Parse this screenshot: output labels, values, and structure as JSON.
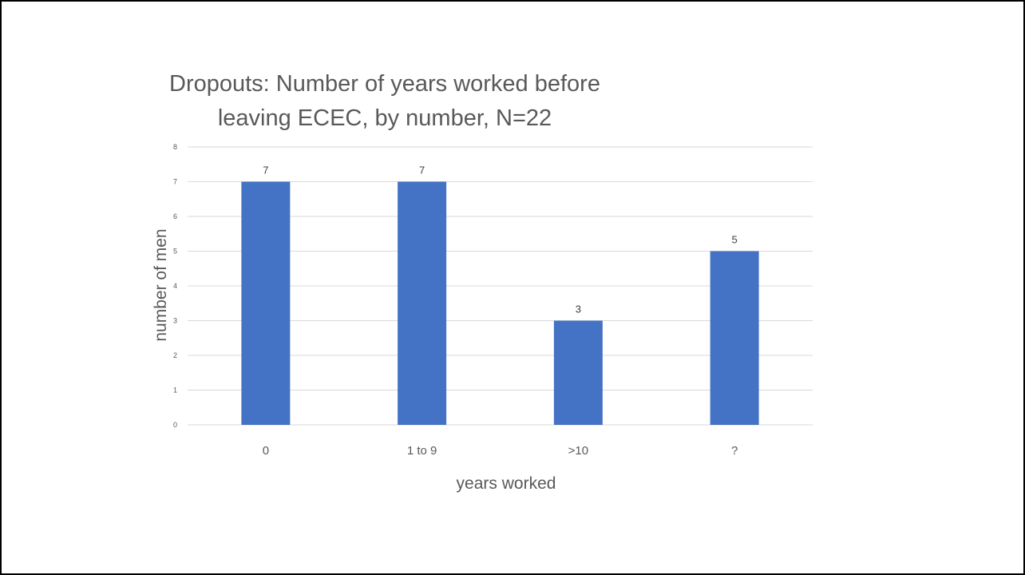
{
  "chart_data": {
    "type": "bar",
    "title": "Dropouts: Number of years worked before leaving ECEC, by number, N=22",
    "title_lines": [
      "Dropouts: Number of years worked before",
      "leaving ECEC, by number, N=22"
    ],
    "categories": [
      "0",
      "1 to 9",
      ">10",
      "?"
    ],
    "values": [
      7,
      7,
      3,
      5
    ],
    "data_labels": [
      "7",
      "7",
      "3",
      "5"
    ],
    "xlabel": "years worked",
    "ylabel": "number of men",
    "ylim": [
      0,
      8
    ],
    "yticks": [
      "0",
      "1",
      "2",
      "3",
      "4",
      "5",
      "6",
      "7",
      "8"
    ],
    "grid": true,
    "legend": "none",
    "colors": {
      "bar": "#4472C4",
      "grid": "#D9D9D9",
      "text": "#595959"
    }
  }
}
